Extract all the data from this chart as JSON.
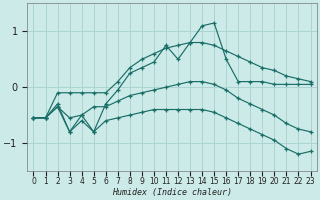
{
  "xlabel": "Humidex (Indice chaleur)",
  "xlim": [
    -0.5,
    23.5
  ],
  "ylim": [
    -1.5,
    1.5
  ],
  "yticks": [
    -1,
    0,
    1
  ],
  "xticks": [
    0,
    1,
    2,
    3,
    4,
    5,
    6,
    7,
    8,
    9,
    10,
    11,
    12,
    13,
    14,
    15,
    16,
    17,
    18,
    19,
    20,
    21,
    22,
    23
  ],
  "background_color": "#cceae8",
  "grid_color": "#aad4d2",
  "line_color": "#1a6e68",
  "x": [
    0,
    1,
    2,
    3,
    4,
    5,
    6,
    7,
    8,
    9,
    10,
    11,
    12,
    13,
    14,
    15,
    16,
    17,
    18,
    19,
    20,
    21,
    22,
    23
  ],
  "line_upper_envelope": [
    -0.55,
    -0.55,
    -0.1,
    -0.1,
    -0.1,
    -0.1,
    -0.1,
    0.1,
    0.35,
    0.5,
    0.6,
    0.7,
    0.75,
    0.8,
    0.8,
    0.75,
    0.65,
    0.55,
    0.45,
    0.35,
    0.3,
    0.2,
    0.15,
    0.1
  ],
  "line_peak": [
    -0.55,
    -0.55,
    -0.3,
    -0.8,
    -0.5,
    -0.8,
    -0.3,
    -0.05,
    0.25,
    0.35,
    0.45,
    0.75,
    0.5,
    0.8,
    1.1,
    1.15,
    0.5,
    0.1,
    0.1,
    0.1,
    0.05,
    0.05,
    0.05,
    0.05
  ],
  "line_mid": [
    -0.55,
    -0.55,
    -0.35,
    -0.55,
    -0.5,
    -0.35,
    -0.35,
    -0.25,
    -0.15,
    -0.1,
    -0.05,
    0.0,
    0.05,
    0.1,
    0.1,
    0.05,
    -0.05,
    -0.2,
    -0.3,
    -0.4,
    -0.5,
    -0.65,
    -0.75,
    -0.8
  ],
  "line_lower_envelope": [
    -0.55,
    -0.55,
    -0.35,
    -0.8,
    -0.6,
    -0.8,
    -0.6,
    -0.55,
    -0.5,
    -0.45,
    -0.4,
    -0.4,
    -0.4,
    -0.4,
    -0.4,
    -0.45,
    -0.55,
    -0.65,
    -0.75,
    -0.85,
    -0.95,
    -1.1,
    -1.2,
    -1.15
  ]
}
